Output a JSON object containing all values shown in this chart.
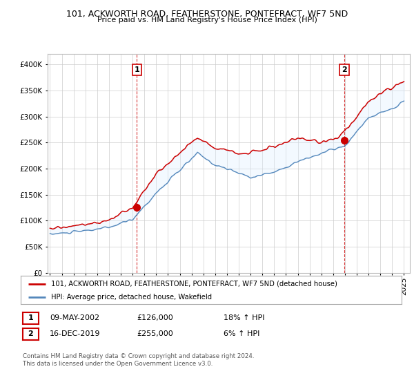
{
  "title": "101, ACKWORTH ROAD, FEATHERSTONE, PONTEFRACT, WF7 5ND",
  "subtitle": "Price paid vs. HM Land Registry's House Price Index (HPI)",
  "legend_line1": "101, ACKWORTH ROAD, FEATHERSTONE, PONTEFRACT, WF7 5ND (detached house)",
  "legend_line2": "HPI: Average price, detached house, Wakefield",
  "footer1": "Contains HM Land Registry data © Crown copyright and database right 2024.",
  "footer2": "This data is licensed under the Open Government Licence v3.0.",
  "transaction1_date": "09-MAY-2002",
  "transaction1_price": "£126,000",
  "transaction1_hpi": "18% ↑ HPI",
  "transaction2_date": "16-DEC-2019",
  "transaction2_price": "£255,000",
  "transaction2_hpi": "6% ↑ HPI",
  "red_color": "#cc0000",
  "blue_color": "#5588bb",
  "fill_color": "#ddeeff",
  "background_color": "#ffffff",
  "grid_color": "#cccccc",
  "ylim": [
    0,
    420000
  ],
  "yticks": [
    0,
    50000,
    100000,
    150000,
    200000,
    250000,
    300000,
    350000,
    400000
  ],
  "marker1_year": 2002.37,
  "marker1_value": 126000,
  "marker2_year": 2019.95,
  "marker2_value": 255000
}
